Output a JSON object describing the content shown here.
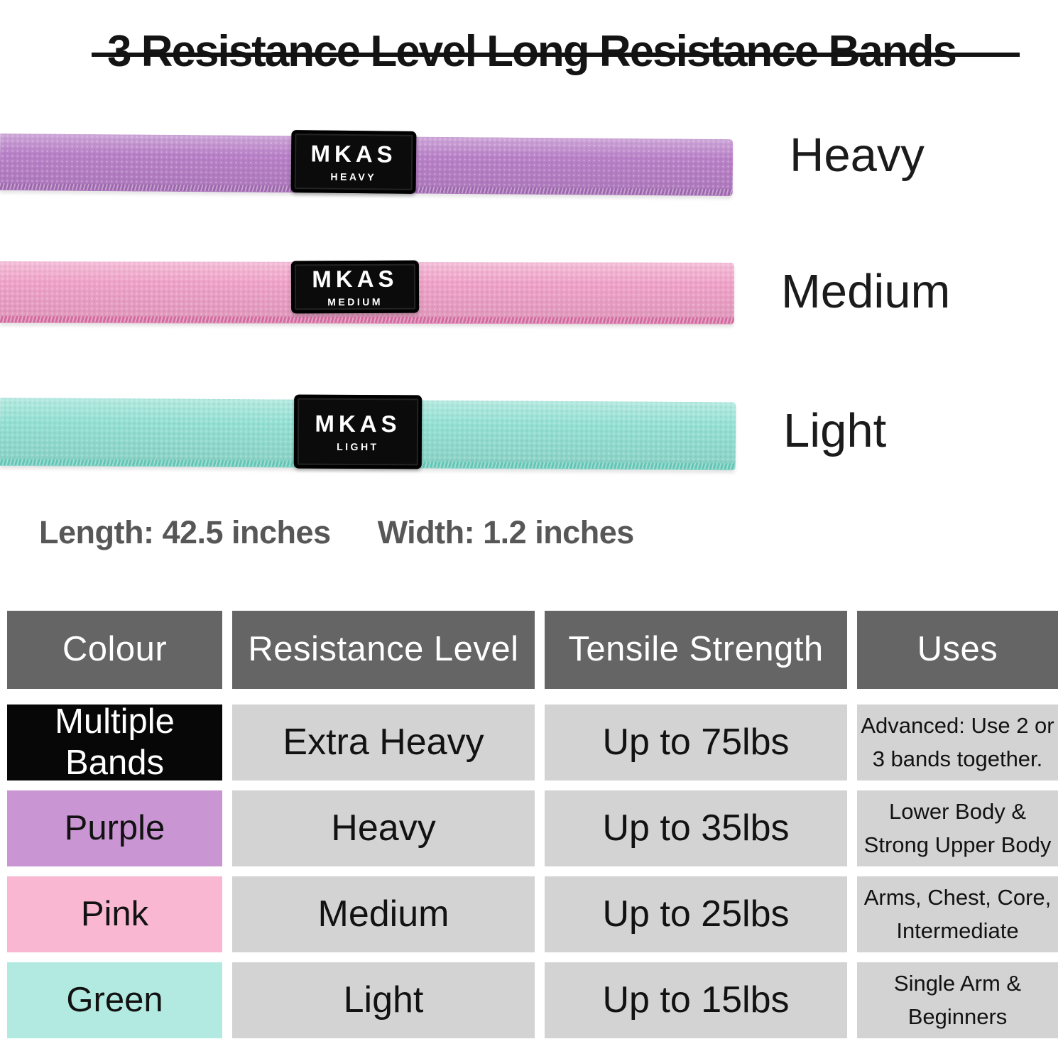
{
  "title": "3 Resistance Level Long Resistance Bands",
  "bands": [
    {
      "label": "Heavy",
      "tag_brand": "MKAS",
      "tag_level": "HEAVY",
      "band_color": "#b981c8",
      "seam_color": "#9c63ad"
    },
    {
      "label": "Medium",
      "tag_brand": "MKAS",
      "tag_level": "MEDIUM",
      "band_color": "#efa2c8",
      "seam_color": "#d1649c"
    },
    {
      "label": "Light",
      "tag_brand": "MKAS",
      "tag_level": "LIGHT",
      "band_color": "#94e0d3",
      "seam_color": "#5ec4b4"
    }
  ],
  "dimensions": {
    "length_label": "Length: 42.5 inches",
    "width_label": "Width: 1.2 inches"
  },
  "table": {
    "header_bg": "#656565",
    "header_fg": "#ffffff",
    "cell_bg": "#d3d3d3",
    "headers": [
      "Colour",
      "Resistance Level",
      "Tensile Strength",
      "Uses"
    ],
    "rows": [
      {
        "colour": "Multiple\nBands",
        "swatch": "#070707",
        "text_color": "#ffffff",
        "level": "Extra Heavy",
        "strength": "Up to 75lbs",
        "uses": "Advanced: Use 2 or\n3 bands together."
      },
      {
        "colour": "Purple",
        "swatch": "#ca95d3",
        "text_color": "#121212",
        "level": "Heavy",
        "strength": "Up to 35lbs",
        "uses": "Lower Body &\nStrong Upper Body"
      },
      {
        "colour": "Pink",
        "swatch": "#f9b7d1",
        "text_color": "#121212",
        "level": "Medium",
        "strength": "Up to 25lbs",
        "uses": "Arms, Chest, Core,\nIntermediate"
      },
      {
        "colour": "Green",
        "swatch": "#b2eae1",
        "text_color": "#121212",
        "level": "Light",
        "strength": "Up to 15lbs",
        "uses": "Single Arm &\nBeginners"
      }
    ]
  }
}
